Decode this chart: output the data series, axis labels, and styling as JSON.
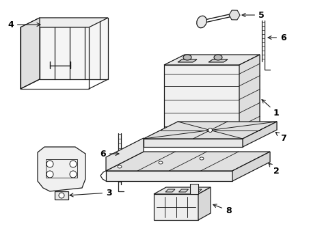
{
  "bg_color": "#ffffff",
  "line_color": "#1a1a1a",
  "label_color": "#000000",
  "label_fontsize": 9,
  "figsize": [
    4.9,
    3.6
  ],
  "dpi": 100
}
